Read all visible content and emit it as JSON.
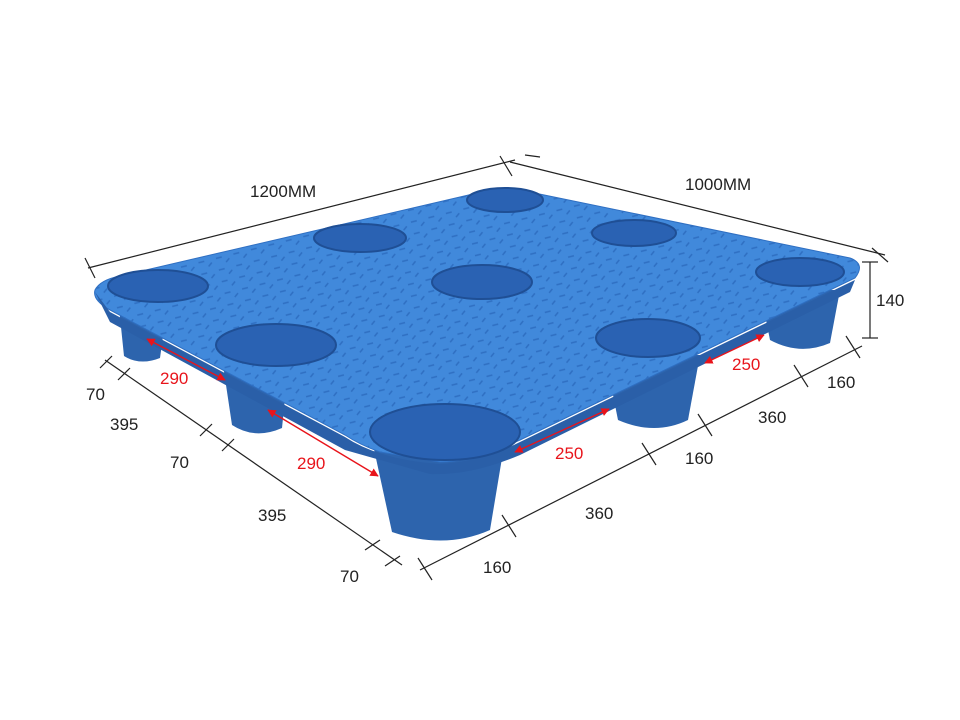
{
  "diagram": {
    "colors": {
      "pallet": "#3d82d6",
      "pallet_dark": "#2a5fa8",
      "leg": "#2d64ad",
      "dimension_line": "#222222",
      "clearance": "#e8141b"
    },
    "overall": {
      "length": "1200MM",
      "width": "1000MM",
      "height": "140"
    },
    "left_side": [
      "70",
      "395",
      "70",
      "395",
      "70"
    ],
    "right_side": [
      "160",
      "360",
      "160",
      "360",
      "160"
    ],
    "clearance_left": [
      "290",
      "290"
    ],
    "clearance_right": [
      "250",
      "250"
    ]
  }
}
